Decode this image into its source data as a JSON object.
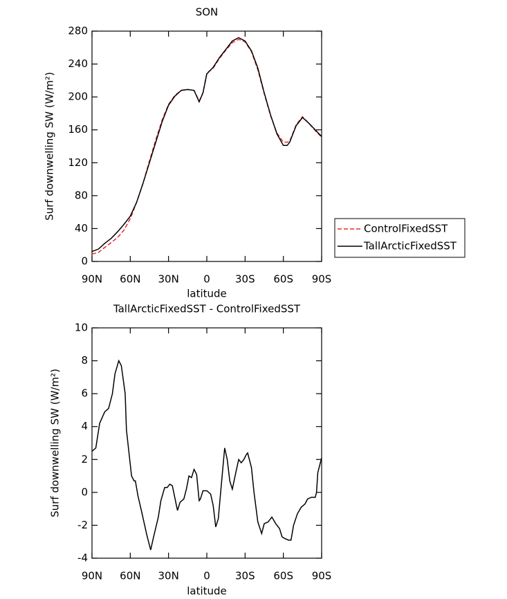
{
  "chart_data": [
    {
      "type": "line",
      "title": "SON",
      "x_label": "latitude",
      "y_label": "Surf downwelling SW (W/m²)",
      "x": [
        90,
        85,
        80,
        75,
        70,
        65,
        60,
        55,
        50,
        45,
        40,
        35,
        30,
        25,
        20,
        15,
        10,
        6,
        3,
        0,
        -5,
        -10,
        -15,
        -20,
        -25,
        -30,
        -35,
        -40,
        -45,
        -50,
        -55,
        -60,
        -63,
        -65,
        -70,
        -75,
        -80,
        -85,
        -90
      ],
      "series": [
        {
          "name": "ControlFixedSST",
          "color": "#e8262a",
          "line_style": "dashed",
          "values": [
            9,
            11,
            17,
            23,
            29,
            38,
            52,
            72,
            95,
            122,
            148,
            172,
            191,
            202,
            208,
            209,
            208,
            195,
            205,
            229,
            235,
            247,
            257,
            266,
            270,
            267,
            255,
            233,
            204,
            177,
            156,
            145,
            145,
            146,
            166,
            176,
            168,
            159,
            151
          ]
        },
        {
          "name": "TallArcticFixedSST",
          "color": "#000000",
          "line_style": "solid",
          "values": [
            12,
            15,
            22,
            28,
            36,
            45,
            55,
            72,
            95,
            120,
            145,
            170,
            190,
            201,
            208,
            209,
            208,
            194,
            205,
            228,
            236,
            248,
            258,
            268,
            272,
            268,
            256,
            235,
            205,
            178,
            155,
            141,
            141,
            145,
            165,
            175,
            168,
            160,
            152
          ]
        }
      ],
      "xlim": [
        90,
        -90
      ],
      "xticks": [
        {
          "value": 90,
          "label": "90N"
        },
        {
          "value": 60,
          "label": "60N"
        },
        {
          "value": 30,
          "label": "30N"
        },
        0,
        {
          "value": -30,
          "label": "30S"
        },
        {
          "value": -60,
          "label": "60S"
        },
        {
          "value": -90,
          "label": "90S"
        }
      ],
      "ylim": [
        0,
        280
      ],
      "yticks": [
        0,
        40,
        80,
        120,
        160,
        200,
        240,
        280
      ],
      "legend": "right"
    },
    {
      "type": "line",
      "title": "TallArcticFixedSST - ControlFixedSST",
      "x_label": "latitude",
      "y_label": "Surf downwelling SW (W/m²)",
      "x": [
        90,
        87,
        84,
        80,
        77,
        74,
        72,
        69,
        67,
        64,
        63,
        59,
        57,
        56,
        54,
        51,
        47,
        44,
        42,
        38,
        36,
        33,
        31,
        29,
        27,
        23,
        21,
        18,
        16,
        14,
        12,
        10,
        8,
        6,
        5,
        3,
        0,
        -3,
        -5,
        -7,
        -9,
        -12,
        -14,
        -16,
        -18,
        -20,
        -23,
        -25,
        -27,
        -29,
        -31,
        -32,
        -35,
        -37,
        -40,
        -43,
        -45,
        -48,
        -51,
        -54,
        -57,
        -59,
        -61,
        -64,
        -66,
        -68,
        -71,
        -74,
        -77,
        -79,
        -82,
        -85,
        -86,
        -87,
        -90
      ],
      "series": [
        {
          "name": "TallArcticFixedSST - ControlFixedSST",
          "color": "#000000",
          "line_style": "solid",
          "values": [
            2.5,
            2.7,
            4.2,
            4.9,
            5.1,
            6.0,
            7.2,
            8.0,
            7.7,
            6.0,
            3.8,
            1.0,
            0.7,
            0.7,
            -0.2,
            -1.2,
            -2.6,
            -3.5,
            -2.8,
            -1.5,
            -0.5,
            0.3,
            0.3,
            0.5,
            0.4,
            -1.1,
            -0.6,
            -0.4,
            0.2,
            1.0,
            0.9,
            1.4,
            1.1,
            -0.5,
            -0.4,
            0.1,
            0.1,
            -0.1,
            -0.8,
            -2.1,
            -1.6,
            1.0,
            2.7,
            2.0,
            0.7,
            0.2,
            1.3,
            2.0,
            1.8,
            2.0,
            2.3,
            2.4,
            1.5,
            0,
            -1.8,
            -2.5,
            -1.9,
            -1.8,
            -1.5,
            -1.9,
            -2.2,
            -2.7,
            -2.8,
            -2.9,
            -2.9,
            -2.0,
            -1.3,
            -0.9,
            -0.7,
            -0.4,
            -0.3,
            -0.3,
            0,
            1.2,
            2.1
          ]
        }
      ],
      "xlim": [
        90,
        -90
      ],
      "xticks": [
        {
          "value": 90,
          "label": "90N"
        },
        {
          "value": 60,
          "label": "60N"
        },
        {
          "value": 30,
          "label": "30N"
        },
        0,
        {
          "value": -30,
          "label": "30S"
        },
        {
          "value": -60,
          "label": "60S"
        },
        {
          "value": -90,
          "label": "90S"
        }
      ],
      "ylim": [
        -4,
        10
      ],
      "yticks": [
        -4,
        -2,
        0,
        2,
        4,
        6,
        8,
        10
      ]
    }
  ]
}
